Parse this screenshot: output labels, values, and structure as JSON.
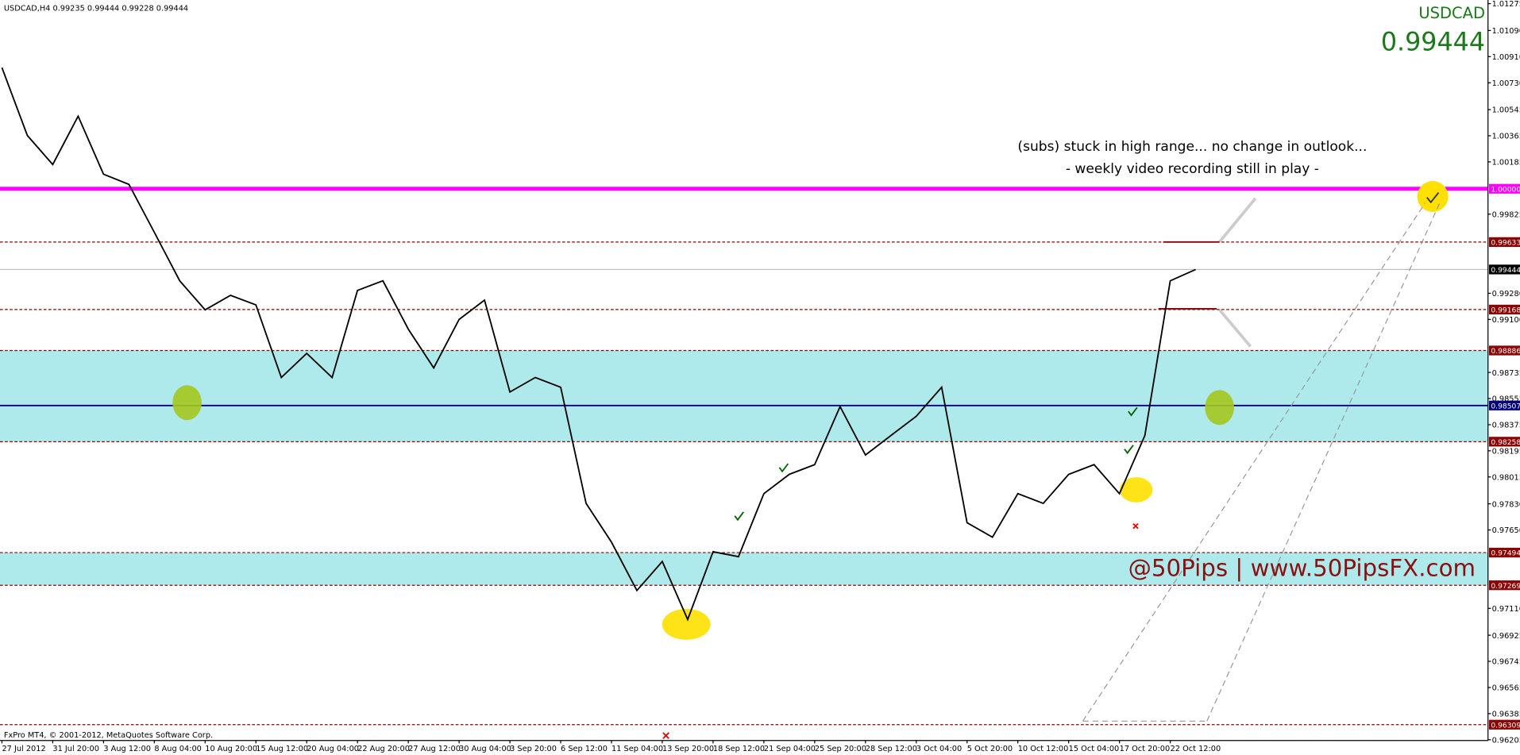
{
  "chart_data": {
    "type": "line",
    "title": "USDCAD",
    "symbol_line": "USDCAD,H4 0.99235 0.99444 0.99228 0.99444",
    "price": "0.99444",
    "annotations": [
      "(subs) stuck in high range... no change in outlook...",
      "- weekly video recording still in play -"
    ],
    "watermark": "@50Pips | www.50PipsFX.com",
    "footer": "FxPro MT4, © 2001-2012, MetaQuotes Software Corp.",
    "categories": [
      "27 Jul 2012",
      null,
      "31 Jul 20:00",
      null,
      "3 Aug 12:00",
      null,
      "8 Aug 04:00",
      null,
      "10 Aug 20:00",
      null,
      "15 Aug 12:00",
      null,
      "20 Aug 04:00",
      null,
      "22 Aug 20:00",
      null,
      "27 Aug 12:00",
      null,
      "30 Aug 04:00",
      null,
      "3 Sep 20:00",
      null,
      "6 Sep 12:00",
      null,
      "11 Sep 04:00",
      null,
      "13 Sep 20:00",
      null,
      "18 Sep 12:00",
      null,
      "21 Sep 04:00",
      null,
      "25 Sep 20:00",
      null,
      "28 Sep 12:00",
      null,
      "3 Oct 04:00",
      null,
      "5 Oct 20:00",
      null,
      "10 Oct 12:00",
      null,
      "15 Oct 04:00",
      null,
      "17 Oct 20:00",
      null,
      "22 Oct 12:00",
      null
    ],
    "series": [
      {
        "name": "USDCAD",
        "color": "#000000",
        "values": [
          1.00834,
          1.00367,
          1.00167,
          1.005,
          1.001,
          1.0003,
          0.997,
          0.99366,
          0.99166,
          0.99266,
          0.992,
          0.987,
          0.98866,
          0.987,
          0.993,
          0.99366,
          0.99033,
          0.98766,
          0.991,
          0.99233,
          0.986,
          0.987,
          0.98633,
          0.97833,
          0.97566,
          0.97233,
          0.97433,
          0.97033,
          0.975,
          0.97466,
          0.979,
          0.98033,
          0.981,
          0.985,
          0.98166,
          0.983,
          0.98433,
          0.98633,
          0.977,
          0.976,
          0.979,
          0.97833,
          0.98033,
          0.981,
          0.979,
          0.983,
          0.99366,
          0.99444
        ]
      }
    ],
    "ylim": [
      0.962,
      1.013
    ],
    "yticks": [
      1.01275,
      {
        "value": 1.0109,
        "label": "1.01090"
      },
      {
        "value": 1.0091,
        "label": "1.00910"
      },
      {
        "value": 1.0073,
        "label": "1.00730"
      },
      1.00545,
      1.00365,
      1.00185,
      0.99825,
      {
        "value": 0.9928,
        "label": "0.99280"
      },
      {
        "value": 0.991,
        "label": "0.99100"
      },
      0.98735,
      0.98555,
      0.98375,
      0.98195,
      0.98015,
      {
        "value": 0.9783,
        "label": "0.97830"
      },
      {
        "value": 0.9765,
        "label": "0.97650"
      },
      {
        "value": 0.9711,
        "label": "0.97110"
      },
      0.96925,
      0.96745,
      0.96565,
      0.96385,
      0.96205
    ],
    "levels": [
      {
        "value": 1.0,
        "label": "1.00000",
        "color": "#ff00ff"
      },
      {
        "value": 0.99633,
        "color": "#8b0000"
      },
      {
        "value": 0.99444,
        "color": "#000000"
      },
      {
        "value": 0.99168,
        "color": "#8b0000"
      },
      {
        "value": 0.98886,
        "color": "#8b0000"
      },
      {
        "value": 0.98507,
        "color": "#000080"
      },
      {
        "value": 0.98258,
        "color": "#8b0000"
      },
      {
        "value": 0.97494,
        "color": "#8b0000"
      },
      {
        "value": 0.97269,
        "color": "#8b0000"
      },
      {
        "value": 0.96309,
        "color": "#8b0000"
      }
    ]
  }
}
